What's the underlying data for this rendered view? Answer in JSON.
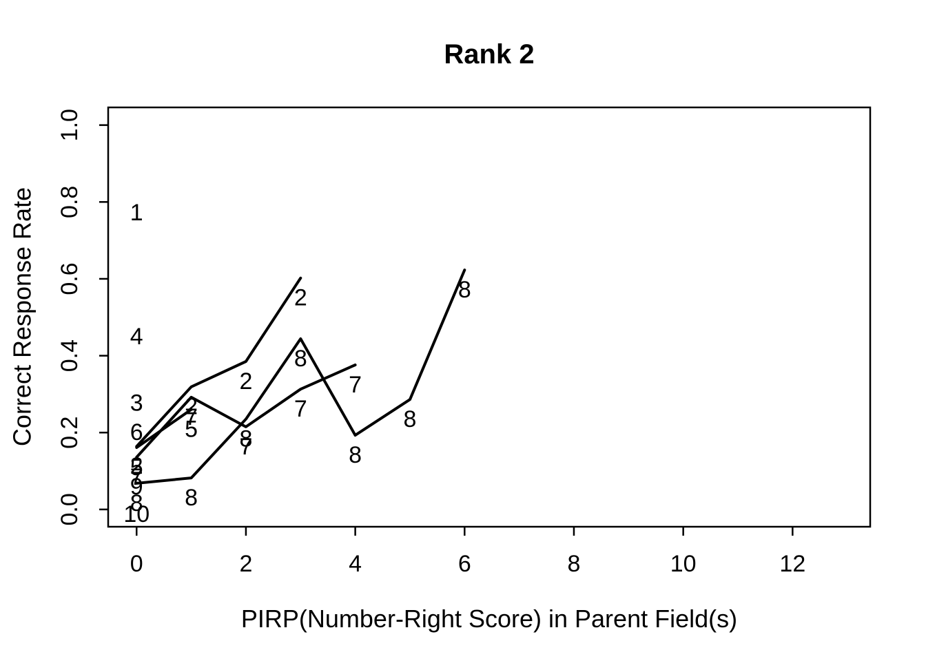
{
  "page": {
    "background": "#ffffff",
    "foreground": "#000000"
  },
  "chart_data": {
    "type": "line",
    "title": "Rank 2",
    "xlabel": "PIRP(Number-Right Score) in Parent Field(s)",
    "ylabel": "Correct Response Rate",
    "x_ticks": [
      0,
      2,
      4,
      6,
      8,
      10,
      12
    ],
    "y_ticks": [
      "0.0",
      "0.2",
      "0.4",
      "0.6",
      "0.8",
      "1.0"
    ],
    "xlim": [
      -0.52,
      13.42
    ],
    "ylim": [
      -0.045,
      1.046
    ],
    "grid": false,
    "legend": false,
    "line_color": "#000000",
    "label_placement": "item number drawn just below each data point",
    "series": [
      {
        "name": "1",
        "points": [
          [
            0,
            0.824
          ]
        ]
      },
      {
        "name": "2",
        "points": [
          [
            0,
            0.164
          ],
          [
            1,
            0.319
          ],
          [
            2,
            0.385
          ],
          [
            3,
            0.602
          ]
        ]
      },
      {
        "name": "3",
        "points": [
          [
            0,
            0.328
          ]
        ]
      },
      {
        "name": "4",
        "points": [
          [
            0,
            0.501
          ]
        ]
      },
      {
        "name": "5",
        "points": [
          [
            0,
            0.161
          ],
          [
            1,
            0.26
          ]
        ]
      },
      {
        "name": "6",
        "points": [
          [
            0,
            0.252
          ]
        ]
      },
      {
        "name": "7",
        "points": [
          [
            0,
            0.136
          ],
          [
            1,
            0.292
          ],
          [
            2,
            0.215
          ],
          [
            3,
            0.313
          ],
          [
            4,
            0.376
          ]
        ]
      },
      {
        "name": "8",
        "points": [
          [
            0,
            0.068
          ],
          [
            1,
            0.082
          ],
          [
            2,
            0.235
          ],
          [
            3,
            0.444
          ],
          [
            4,
            0.193
          ],
          [
            5,
            0.286
          ],
          [
            6,
            0.623
          ]
        ]
      },
      {
        "name": "9",
        "points": [
          [
            0,
            0.111
          ]
        ]
      },
      {
        "name": "10",
        "points": [
          [
            0,
            0.039
          ]
        ]
      }
    ]
  }
}
